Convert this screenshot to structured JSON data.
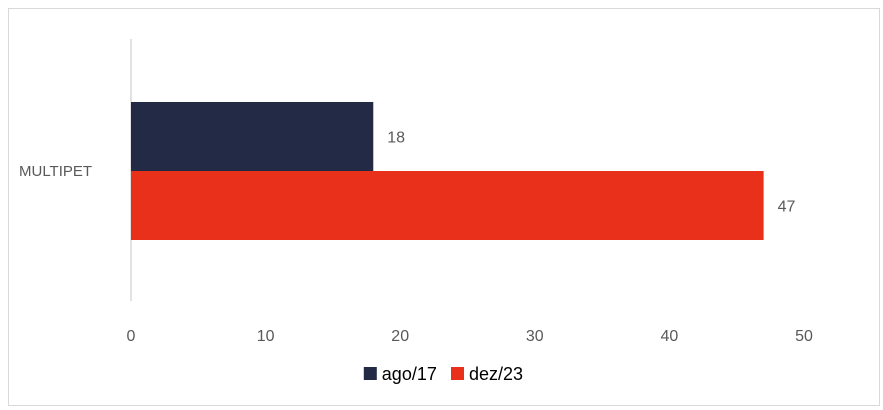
{
  "chart_data": {
    "type": "bar",
    "orientation": "horizontal",
    "categories": [
      "MULTIPET"
    ],
    "series": [
      {
        "name": "ago/17",
        "values": [
          18
        ],
        "color": "#222a45"
      },
      {
        "name": "dez/23",
        "values": [
          47
        ],
        "color": "#e8301a"
      }
    ],
    "data_labels": true,
    "xlim": [
      0,
      50
    ],
    "x_ticks": [
      0,
      10,
      20,
      30,
      40,
      50
    ],
    "grid": false,
    "legend_position": "bottom",
    "title": "",
    "xlabel": "",
    "ylabel": ""
  }
}
